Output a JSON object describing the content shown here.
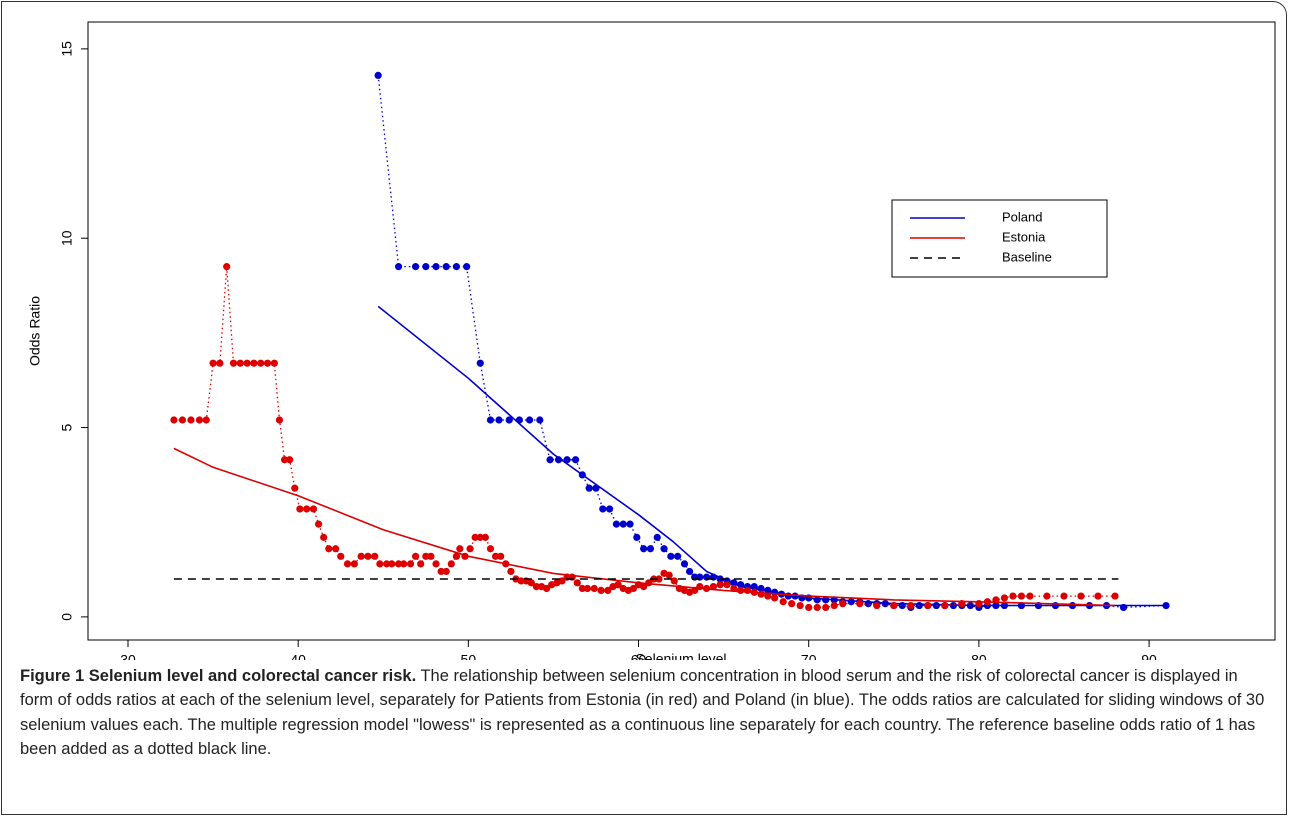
{
  "chart_data": {
    "type": "scatter",
    "xlabel": "Selenium level",
    "ylabel": "Odds Ratio",
    "xlim": [
      27.65,
      97.4
    ],
    "ylim": [
      -0.61,
      15.71
    ],
    "xticks": [
      30,
      40,
      50,
      60,
      70,
      80,
      90
    ],
    "yticks": [
      0,
      5,
      10,
      15
    ],
    "legend": "upper right",
    "series": [
      {
        "name": "Poland",
        "color": "#0000cc",
        "x": [
          44.7,
          50,
          55,
          60,
          62,
          64,
          66,
          70,
          75,
          80,
          85,
          91
        ],
        "values": [
          8.2,
          6.3,
          4.3,
          2.7,
          2.0,
          1.2,
          0.8,
          0.5,
          0.35,
          0.3,
          0.3,
          0.3
        ],
        "points_x": [
          44.7,
          45.9,
          46.9,
          47.5,
          48.1,
          48.7,
          49.3,
          49.9,
          50.7,
          51.3,
          51.8,
          52.4,
          53.0,
          53.6,
          54.2,
          54.8,
          55.3,
          55.8,
          56.3,
          56.7,
          57.1,
          57.5,
          57.9,
          58.3,
          58.7,
          59.1,
          59.5,
          59.9,
          60.3,
          60.7,
          61.1,
          61.5,
          61.9,
          62.3,
          62.7,
          63.0,
          63.3,
          63.6,
          64.0,
          64.4,
          64.8,
          65.2,
          65.6,
          66.0,
          66.4,
          66.8,
          67.2,
          67.6,
          68.0,
          68.4,
          68.8,
          69.2,
          69.6,
          70.0,
          70.5,
          71.0,
          71.5,
          72.0,
          72.5,
          73.0,
          73.5,
          74.0,
          74.5,
          75.0,
          75.5,
          76.0,
          76.5,
          77.0,
          77.5,
          78.0,
          78.5,
          79.0,
          79.5,
          80.0,
          80.5,
          81.0,
          81.5,
          82.5,
          83.5,
          84.5,
          85.5,
          86.5,
          87.5,
          88.5,
          91.0
        ],
        "points": [
          14.3,
          9.25,
          9.25,
          9.25,
          9.25,
          9.25,
          9.25,
          9.25,
          6.7,
          5.2,
          5.2,
          5.2,
          5.2,
          5.2,
          5.2,
          4.15,
          4.15,
          4.15,
          4.15,
          3.75,
          3.4,
          3.4,
          2.85,
          2.85,
          2.45,
          2.45,
          2.45,
          2.1,
          1.8,
          1.8,
          2.1,
          1.8,
          1.6,
          1.6,
          1.4,
          1.2,
          1.05,
          1.05,
          1.05,
          1.05,
          1.0,
          0.95,
          0.9,
          0.85,
          0.8,
          0.8,
          0.75,
          0.7,
          0.65,
          0.6,
          0.55,
          0.55,
          0.5,
          0.5,
          0.45,
          0.45,
          0.45,
          0.4,
          0.4,
          0.4,
          0.35,
          0.35,
          0.35,
          0.3,
          0.3,
          0.25,
          0.3,
          0.3,
          0.3,
          0.3,
          0.3,
          0.3,
          0.3,
          0.25,
          0.3,
          0.3,
          0.3,
          0.3,
          0.3,
          0.3,
          0.3,
          0.3,
          0.3,
          0.25,
          0.3
        ]
      },
      {
        "name": "Estonia",
        "color": "#dd0000",
        "x": [
          32.7,
          35,
          40,
          45,
          50,
          55,
          60,
          65,
          70,
          75,
          80,
          88
        ],
        "values": [
          4.45,
          3.95,
          3.2,
          2.3,
          1.6,
          1.15,
          0.9,
          0.7,
          0.55,
          0.45,
          0.4,
          0.3
        ],
        "points_x": [
          32.7,
          33.2,
          33.7,
          34.2,
          34.6,
          35.0,
          35.4,
          35.8,
          36.2,
          36.6,
          37.0,
          37.4,
          37.8,
          38.2,
          38.6,
          38.9,
          39.2,
          39.5,
          39.8,
          40.1,
          40.5,
          40.9,
          41.2,
          41.5,
          41.8,
          42.2,
          42.5,
          42.9,
          43.3,
          43.7,
          44.1,
          44.5,
          44.8,
          45.2,
          45.5,
          45.9,
          46.2,
          46.6,
          46.9,
          47.2,
          47.5,
          47.8,
          48.1,
          48.4,
          48.7,
          49.0,
          49.3,
          49.5,
          49.8,
          50.1,
          50.4,
          50.7,
          51.0,
          51.3,
          51.6,
          51.9,
          52.2,
          52.5,
          52.8,
          53.1,
          53.4,
          53.7,
          54.0,
          54.3,
          54.6,
          54.9,
          55.2,
          55.5,
          55.8,
          56.1,
          56.4,
          56.7,
          57.0,
          57.4,
          57.8,
          58.2,
          58.5,
          58.8,
          59.1,
          59.4,
          59.7,
          60.0,
          60.3,
          60.6,
          60.9,
          61.2,
          61.5,
          61.8,
          62.1,
          62.4,
          62.7,
          63.0,
          63.3,
          63.6,
          64.0,
          64.4,
          64.8,
          65.2,
          65.6,
          66.0,
          66.4,
          66.8,
          67.2,
          67.6,
          68.0,
          68.5,
          69.0,
          69.5,
          70.0,
          70.5,
          71.0,
          71.5,
          72.0,
          73.0,
          74.0,
          75.0,
          76.0,
          77.0,
          78.0,
          79.0,
          80.0,
          80.5,
          81.0,
          81.5,
          82.0,
          82.5,
          83.0,
          84.0,
          85.0,
          86.0,
          87.0,
          88.0
        ],
        "points": [
          5.2,
          5.2,
          5.2,
          5.2,
          5.2,
          6.7,
          6.7,
          9.25,
          6.7,
          6.7,
          6.7,
          6.7,
          6.7,
          6.7,
          6.7,
          5.2,
          4.15,
          4.15,
          3.4,
          2.85,
          2.85,
          2.85,
          2.45,
          2.1,
          1.8,
          1.8,
          1.6,
          1.4,
          1.4,
          1.6,
          1.6,
          1.6,
          1.4,
          1.4,
          1.4,
          1.4,
          1.4,
          1.4,
          1.6,
          1.4,
          1.6,
          1.6,
          1.4,
          1.2,
          1.2,
          1.4,
          1.6,
          1.8,
          1.6,
          1.8,
          2.1,
          2.1,
          2.1,
          1.8,
          1.6,
          1.6,
          1.4,
          1.2,
          1.0,
          0.95,
          0.95,
          0.9,
          0.8,
          0.8,
          0.75,
          0.85,
          0.9,
          0.95,
          1.05,
          1.05,
          0.9,
          0.75,
          0.75,
          0.75,
          0.7,
          0.7,
          0.8,
          0.85,
          0.75,
          0.7,
          0.75,
          0.85,
          0.8,
          0.9,
          1.0,
          1.0,
          1.15,
          1.1,
          0.95,
          0.75,
          0.7,
          0.65,
          0.7,
          0.8,
          0.75,
          0.8,
          0.85,
          0.85,
          0.75,
          0.7,
          0.7,
          0.65,
          0.6,
          0.55,
          0.5,
          0.4,
          0.35,
          0.3,
          0.25,
          0.25,
          0.25,
          0.3,
          0.35,
          0.35,
          0.3,
          0.3,
          0.3,
          0.3,
          0.3,
          0.35,
          0.35,
          0.4,
          0.45,
          0.5,
          0.55,
          0.55,
          0.55,
          0.55,
          0.55,
          0.55,
          0.55,
          0.55
        ]
      },
      {
        "name": "Baseline",
        "color": "#000000",
        "dashed": true,
        "x": [
          32.7,
          88.2
        ],
        "values": [
          1,
          1
        ]
      }
    ]
  },
  "caption": {
    "title": "Figure 1 Selenium level and colorectal cancer risk.",
    "text": "The relationship between selenium concentration in blood serum and the risk of colorectal cancer is displayed in form of odds ratios at each of the selenium level, separately for Patients from Estonia (in red) and Poland (in blue). The odds ratios are calculated for sliding windows of 30 selenium values each. The multiple regression model \"lowess\" is represented as a continuous line separately for each country. The reference baseline odds ratio of 1 has been added as a dotted black line."
  }
}
